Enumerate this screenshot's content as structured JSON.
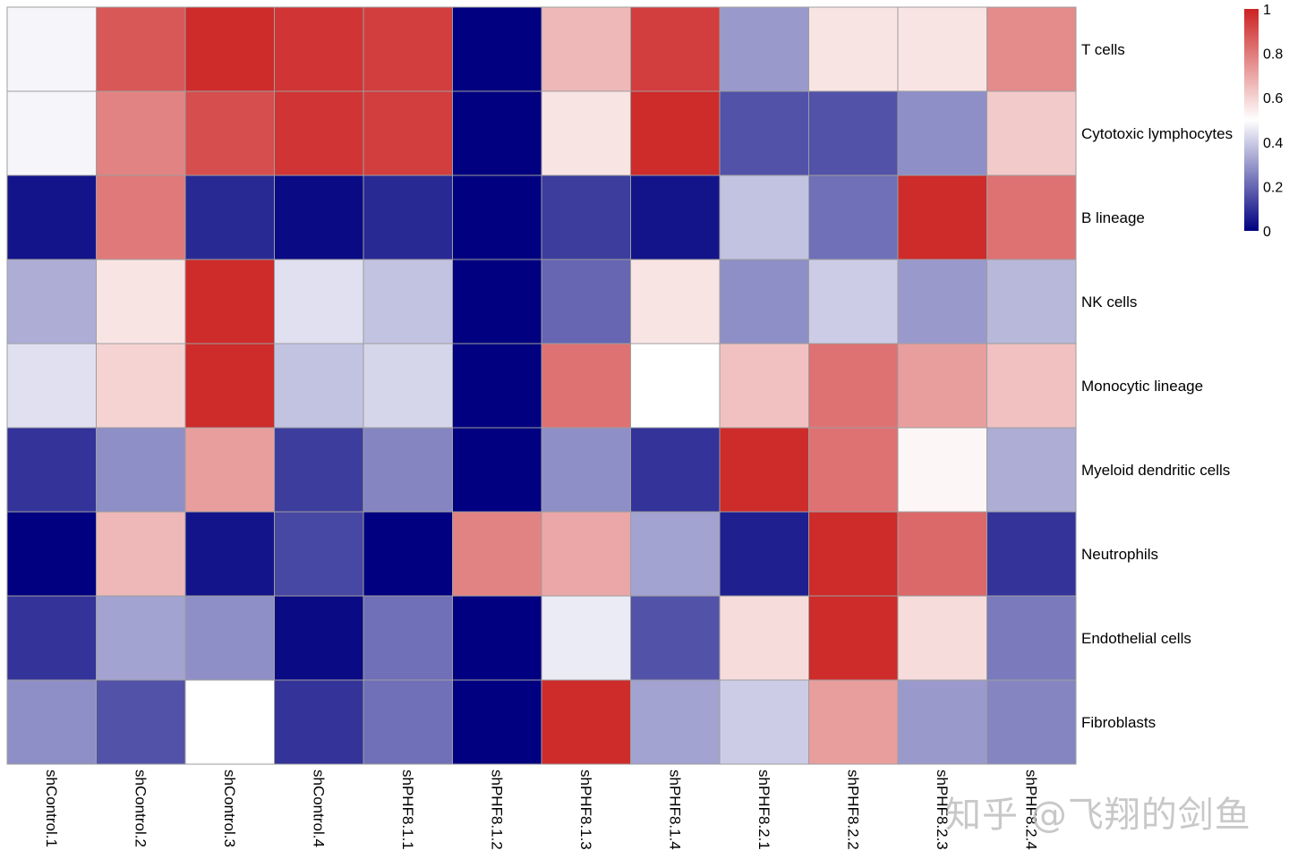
{
  "chart_data": {
    "type": "heatmap",
    "rows": [
      "T cells",
      "Cytotoxic lymphocytes",
      "B lineage",
      "NK cells",
      "Monocytic lineage",
      "Myeloid dendritic cells",
      "Neutrophils",
      "Endothelial cells",
      "Fibroblasts"
    ],
    "columns": [
      "shControl.1",
      "shControl.2",
      "shControl.3",
      "shControl.4",
      "shPHF8.1.1",
      "shPHF8.1.2",
      "shPHF8.1.3",
      "shPHF8.1.4",
      "shPHF8.2.1",
      "shPHF8.2.2",
      "shPHF8.2.3",
      "shPHF8.2.4"
    ],
    "values": [
      [
        0.48,
        0.88,
        0.98,
        0.96,
        0.94,
        0.0,
        0.66,
        0.94,
        0.3,
        0.56,
        0.56,
        0.76
      ],
      [
        0.48,
        0.78,
        0.9,
        0.96,
        0.94,
        0.0,
        0.56,
        0.98,
        0.16,
        0.16,
        0.28,
        0.62
      ],
      [
        0.04,
        0.8,
        0.08,
        0.02,
        0.08,
        0.0,
        0.12,
        0.04,
        0.38,
        0.22,
        0.98,
        0.82
      ],
      [
        0.34,
        0.56,
        0.98,
        0.44,
        0.38,
        0.0,
        0.2,
        0.56,
        0.28,
        0.4,
        0.3,
        0.36
      ],
      [
        0.44,
        0.6,
        0.98,
        0.38,
        0.42,
        0.0,
        0.82,
        0.5,
        0.64,
        0.82,
        0.72,
        0.64
      ],
      [
        0.1,
        0.28,
        0.72,
        0.12,
        0.26,
        0.0,
        0.28,
        0.1,
        0.98,
        0.82,
        0.52,
        0.34
      ],
      [
        0.0,
        0.66,
        0.04,
        0.14,
        0.0,
        0.78,
        0.7,
        0.32,
        0.06,
        0.98,
        0.84,
        0.1
      ],
      [
        0.1,
        0.32,
        0.28,
        0.02,
        0.22,
        0.0,
        0.46,
        0.16,
        0.58,
        0.98,
        0.58,
        0.24
      ],
      [
        0.28,
        0.16,
        0.5,
        0.1,
        0.22,
        0.0,
        0.98,
        0.32,
        0.4,
        0.72,
        0.3,
        0.26
      ]
    ],
    "colorscale": {
      "low": "#000080",
      "mid": "#ffffff",
      "high": "#cc2222"
    },
    "legend_ticks": [
      "1",
      "0.8",
      "0.6",
      "0.4",
      "0.2",
      "0"
    ],
    "legend_range": [
      0,
      1
    ]
  },
  "watermark": "知乎 @飞翔的剑鱼"
}
